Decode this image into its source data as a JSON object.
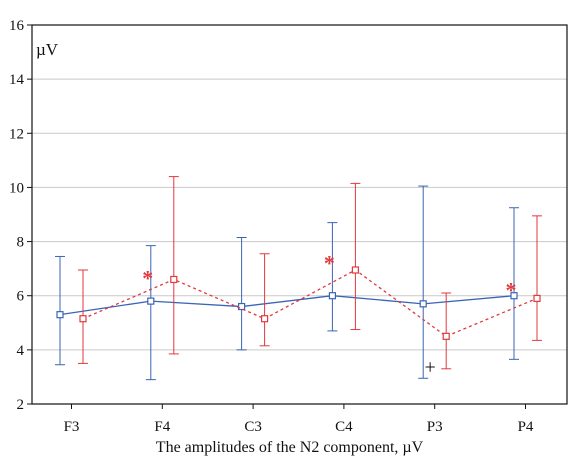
{
  "chart_data": {
    "type": "line",
    "title": "",
    "xlabel": "The amplitudes of the N2 component, µV",
    "ylabel": "",
    "unit_label": "µV",
    "categories": [
      "F3",
      "F4",
      "C3",
      "C4",
      "P3",
      "P4"
    ],
    "ylim": [
      2,
      16
    ],
    "yticks": [
      2,
      4,
      6,
      8,
      10,
      12,
      14,
      16
    ],
    "ytick_labels": [
      "2",
      "4",
      "6",
      "8",
      "10",
      "12",
      "14",
      "16"
    ],
    "grid": "horizontal",
    "legend": "none",
    "colors": {
      "blue": "#3a64b5",
      "red": "#e0393e",
      "axis": "#111111",
      "grid": "#c9c9c9"
    },
    "series": [
      {
        "color": "blue",
        "line_style": "solid",
        "marker": "square",
        "values": [
          5.3,
          5.8,
          5.6,
          6.0,
          5.7,
          6.0
        ],
        "lower": [
          3.45,
          2.9,
          4.0,
          4.7,
          2.95,
          3.65
        ],
        "upper": [
          7.45,
          7.85,
          8.15,
          8.7,
          10.05,
          9.25
        ]
      },
      {
        "color": "red",
        "line_style": "dashed",
        "marker": "square",
        "values": [
          5.15,
          6.6,
          5.15,
          6.95,
          4.5,
          5.9
        ],
        "lower": [
          3.5,
          3.85,
          4.15,
          4.75,
          3.3,
          4.35
        ],
        "upper": [
          6.95,
          10.4,
          7.55,
          10.15,
          6.1,
          8.95
        ]
      }
    ],
    "annotations": [
      {
        "text": "*",
        "category_index": 1,
        "y": 6.75,
        "color": "red"
      },
      {
        "text": "*",
        "category_index": 3,
        "y": 7.3,
        "color": "red"
      },
      {
        "text": "*",
        "category_index": 5,
        "y": 6.3,
        "color": "red"
      },
      {
        "text": "+",
        "category_index": 4,
        "y": 3.5,
        "color": "axis"
      }
    ]
  }
}
